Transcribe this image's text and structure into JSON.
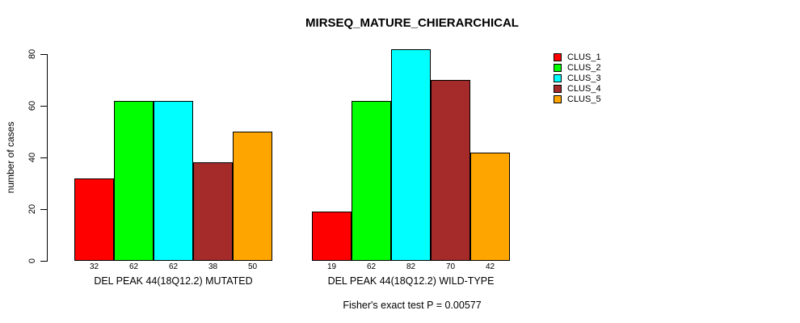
{
  "chart_data": {
    "type": "bar",
    "title": "MIRSEQ_MATURE_CHIERARCHICAL",
    "ylabel": "number of cases",
    "xlabel": "",
    "yticks": [
      0,
      20,
      40,
      60,
      80
    ],
    "ylim": [
      0,
      84
    ],
    "grid": false,
    "legend_position": "right",
    "legend": [
      {
        "label": "CLUS_1",
        "color": "#FF0000"
      },
      {
        "label": "CLUS_2",
        "color": "#00FF00"
      },
      {
        "label": "CLUS_3",
        "color": "#00FFFF"
      },
      {
        "label": "CLUS_4",
        "color": "#A52A2A"
      },
      {
        "label": "CLUS_5",
        "color": "#FFA500"
      }
    ],
    "groups": [
      {
        "label": "DEL PEAK 44(18Q12.2) MUTATED",
        "values": [
          32,
          62,
          62,
          38,
          50
        ],
        "value_labels": [
          "32",
          "62",
          "62",
          "38",
          "50"
        ]
      },
      {
        "label": "DEL PEAK 44(18Q12.2) WILD-TYPE",
        "values": [
          19,
          62,
          82,
          70,
          42
        ],
        "value_labels": [
          "19",
          "62",
          "82",
          "70",
          "42"
        ]
      }
    ],
    "annotation": "Fisher's exact test P = 0.00577"
  }
}
